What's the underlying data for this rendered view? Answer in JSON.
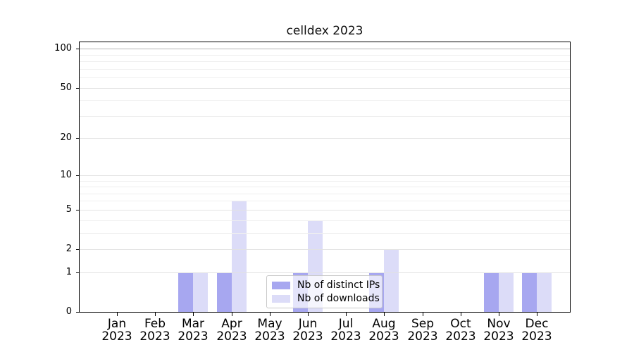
{
  "chart_data": {
    "type": "bar",
    "title": "celldex 2023",
    "x": {
      "categories": [
        {
          "month": "Jan",
          "year": "2023"
        },
        {
          "month": "Feb",
          "year": "2023"
        },
        {
          "month": "Mar",
          "year": "2023"
        },
        {
          "month": "Apr",
          "year": "2023"
        },
        {
          "month": "May",
          "year": "2023"
        },
        {
          "month": "Jun",
          "year": "2023"
        },
        {
          "month": "Jul",
          "year": "2023"
        },
        {
          "month": "Aug",
          "year": "2023"
        },
        {
          "month": "Sep",
          "year": "2023"
        },
        {
          "month": "Oct",
          "year": "2023"
        },
        {
          "month": "Nov",
          "year": "2023"
        },
        {
          "month": "Dec",
          "year": "2023"
        }
      ]
    },
    "y_axis": {
      "scale": "log1p",
      "tick_values": [
        0,
        1,
        2,
        5,
        10,
        20,
        50,
        100
      ],
      "tick_labels": [
        "0",
        "1",
        "2",
        "5",
        "10",
        "20",
        "50",
        "100"
      ],
      "minor_gridline_values": [
        3,
        4,
        6,
        7,
        8,
        9,
        30,
        40,
        60,
        70,
        80,
        90
      ],
      "ylim": [
        0,
        115
      ]
    },
    "series": [
      {
        "name": "Nb of distinct IPs",
        "color": "#a7a7f0",
        "values": [
          0,
          0,
          1,
          1,
          0,
          1,
          0,
          1,
          0,
          0,
          1,
          1
        ]
      },
      {
        "name": "Nb of downloads",
        "color": "#dcdcf8",
        "values": [
          0,
          0,
          1,
          6,
          0,
          4,
          0,
          2,
          0,
          0,
          1,
          1
        ]
      }
    ],
    "legend": {
      "position": "inside-bottom-center",
      "entries": [
        "Nb of distinct IPs",
        "Nb of downloads"
      ]
    },
    "grid": {
      "horizontal": true,
      "color_major": "#e2e2e2",
      "color_minor": "#efefef",
      "color_hundred": "#b4b4b4"
    }
  },
  "colors": {
    "background": "#ffffff",
    "spine": "#000000",
    "text": "#000000"
  }
}
